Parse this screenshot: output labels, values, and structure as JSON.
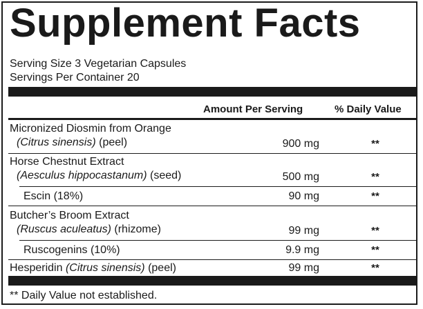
{
  "panel": {
    "title": "Supplement Facts",
    "serving_size": "Serving Size 3 Vegetarian Capsules",
    "servings_per_container": "Servings Per Container 20",
    "col_amount": "Amount Per Serving",
    "col_dv": "% Daily Value",
    "rows": [
      {
        "line1": "Micronized Diosmin from Orange",
        "line2_italic": "(Citrus sinensis)",
        "line2_rest": " (peel)",
        "amount": "900 mg",
        "dv": "**"
      },
      {
        "line1": "Horse Chestnut Extract",
        "line2_italic": "(Aesculus hippocastanum)",
        "line2_rest": " (seed)",
        "amount": "500 mg",
        "dv": "**"
      },
      {
        "line1": "Escin (18%)",
        "amount": "90 mg",
        "dv": "**"
      },
      {
        "line1": "Butcher’s Broom Extract",
        "line2_italic": "(Ruscus aculeatus)",
        "line2_rest": " (rhizome)",
        "amount": "99 mg",
        "dv": "**"
      },
      {
        "line1": "Ruscogenins (10%)",
        "amount": "9.9 mg",
        "dv": "**"
      },
      {
        "line1_plain": "Hesperidin ",
        "line1_italic": "(Citrus sinensis)",
        "line1_rest": " (peel)",
        "amount": "99 mg",
        "dv": "**"
      }
    ],
    "footnote": "** Daily Value not established."
  }
}
